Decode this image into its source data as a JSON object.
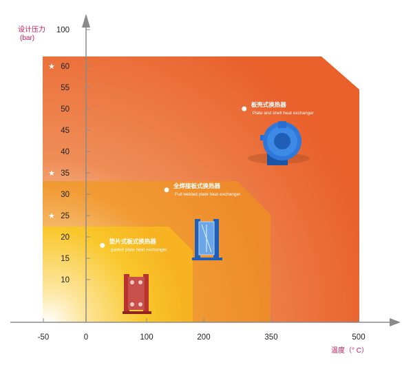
{
  "chart_data": {
    "type": "area",
    "title": "",
    "ylabel": "设计压力",
    "ylabel_unit": "(bar)",
    "xlabel": "温度（° C）",
    "y_ticks": [
      10,
      15,
      20,
      25,
      30,
      35,
      40,
      45,
      50,
      55,
      60,
      100
    ],
    "x_ticks": [
      -50,
      0,
      100,
      200,
      350,
      500
    ],
    "y_star_marks": [
      25,
      35,
      60
    ],
    "regions": [
      {
        "id": "plate-shell",
        "name_cn": "板壳式换热器",
        "name_en": "Plate and shell heat exchanger",
        "max_pressure": 60,
        "max_temperature": 500,
        "color": "#E9602B",
        "label_point": {
          "x": 290,
          "y": 50
        }
      },
      {
        "id": "full-welded",
        "name_cn": "全焊接板式换热器",
        "name_en": "Full welded plate heat exchanger",
        "max_pressure": 35,
        "max_temperature": 350,
        "color": "#EF8A2A",
        "label_point": {
          "x": 135,
          "y": 31
        }
      },
      {
        "id": "gasket",
        "name_cn": "垫片式板式换热器",
        "name_en": "gasket plate heat exchanger",
        "max_pressure": 25,
        "max_temperature": 180,
        "color": "#F7B321",
        "label_point": {
          "x": 27,
          "y": 18
        }
      }
    ],
    "grid": false,
    "legend": "none"
  },
  "colors": {
    "axis": "#8a8a8a",
    "ylabel": "#c2185b",
    "white_text": "#ffffff",
    "dark_text": "#222222"
  }
}
